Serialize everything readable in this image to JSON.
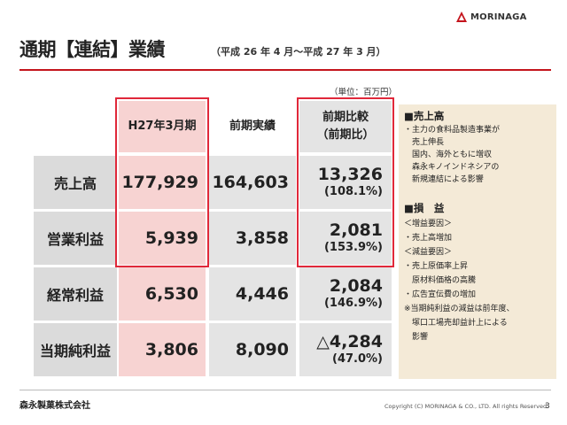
{
  "header": {
    "title": "通期【連結】業績",
    "period": "（平成 26 年 4 月～平成 27 年 3 月）",
    "logo_text": "MORINAGA"
  },
  "unit_note": "（単位：百万円）",
  "table": {
    "headers": {
      "current": "H27年3月期",
      "previous": "前期実績",
      "compare_line1": "前期比較",
      "compare_line2": "（前期比）"
    },
    "rows": [
      {
        "label": "売上高",
        "current": "177,929",
        "previous": "164,603",
        "diff": "13,326",
        "pct": "(108.1%)"
      },
      {
        "label": "営業利益",
        "current": "5,939",
        "previous": "3,858",
        "diff": "2,081",
        "pct": "(153.9%)"
      },
      {
        "label": "経常利益",
        "current": "6,530",
        "previous": "4,446",
        "diff": "2,084",
        "pct": "(146.9%)"
      },
      {
        "label": "当期純利益",
        "current": "3,806",
        "previous": "8,090",
        "diff": "△4,284",
        "pct": "(47.0%)"
      }
    ]
  },
  "notes": {
    "sales_heading": "■売上高",
    "sales_lines": [
      "・主力の食料品製造事業が",
      "　売上伸長",
      "　国内、海外ともに増収",
      "　森永キノインドネシアの",
      "　新規連結による影響"
    ],
    "profit_heading": "■損　益",
    "profit_lines": [
      "＜増益要因＞",
      "・売上高増加",
      "＜減益要因＞",
      "・売上原価率上昇",
      "　原材料価格の高騰",
      "・広告宣伝費の増加",
      "※当期純利益の減益は前年度、",
      "　塚口工場売却益計上による",
      "　影響"
    ]
  },
  "footer": {
    "company": "森永製菓株式会社",
    "copyright": "Copyright (C) MORINAGA & CO., LTD. All rights Reserved.",
    "page": "3"
  },
  "colors": {
    "accent_red": "#c4141c",
    "highlight_box": "#e0283a",
    "pink_fill": "#f7d3d2",
    "grey_fill": "#e4e4e4",
    "note_panel": "#f4ead7"
  }
}
